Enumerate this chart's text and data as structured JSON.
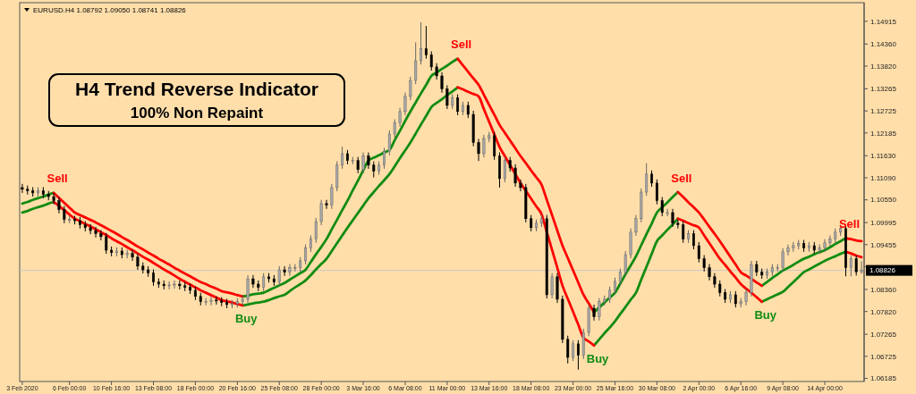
{
  "chart_data": {
    "type": "candlestick",
    "title": "H4 Trend Reverse Indicator",
    "subtitle": "100% Non Repaint",
    "annotations": [
      "EURUSD.H4 1.08792 1.09050 1.08741 1.08826",
      "Sell",
      "Buy",
      "Sell",
      "Buy",
      "Sell",
      "Buy",
      "Sell"
    ],
    "categories": [
      "3 Feb 2020",
      null,
      null,
      null,
      null,
      null,
      null,
      null,
      null,
      "6 Feb 00:00",
      null,
      null,
      null,
      null,
      null,
      null,
      null,
      "10 Feb 16:00",
      null,
      null,
      null,
      null,
      null,
      null,
      null,
      "13 Feb 08:00",
      null,
      null,
      null,
      null,
      null,
      null,
      null,
      "18 Feb 00:00",
      null,
      null,
      null,
      null,
      null,
      null,
      null,
      "20 Feb 16:00",
      null,
      null,
      null,
      null,
      null,
      null,
      null,
      "25 Feb 08:00",
      null,
      null,
      null,
      null,
      null,
      null,
      null,
      "28 Feb 00:00",
      null,
      null,
      null,
      null,
      null,
      null,
      null,
      "3 Mar 16:00",
      null,
      null,
      null,
      null,
      null,
      null,
      null,
      "6 Mar 08:00",
      null,
      null,
      null,
      null,
      null,
      null,
      null,
      "11 Mar 00:00",
      null,
      null,
      null,
      null,
      null,
      null,
      null,
      "13 Mar 16:00",
      null,
      null,
      null,
      null,
      null,
      null,
      null,
      "18 Mar 08:00",
      null,
      null,
      null,
      null,
      null,
      null,
      null,
      "23 Mar 00:00",
      null,
      null,
      null,
      null,
      null,
      null,
      null,
      "25 Mar 16:00",
      null,
      null,
      null,
      null,
      null,
      null,
      null,
      "30 Mar 08:00",
      null,
      null,
      null,
      null,
      null,
      null,
      null,
      "2 Apr 00:00",
      null,
      null,
      null,
      null,
      null,
      null,
      null,
      "6 Apr 16:00",
      null,
      null,
      null,
      null,
      null,
      null,
      null,
      "9 Apr 08:00",
      null,
      null,
      null,
      null,
      null,
      null,
      null,
      "14 Apr 00:00",
      null,
      null,
      null,
      null,
      null,
      null,
      null
    ],
    "ylim": [
      1.0611,
      1.1537
    ],
    "yticks": [
      1.14915,
      {
        "value": 1.1436,
        "label": "1.14360"
      },
      {
        "value": 1.1382,
        "label": "1.13820"
      },
      1.13265,
      1.12725,
      1.12185,
      {
        "value": 1.1163,
        "label": "1.11630"
      },
      {
        "value": 1.1109,
        "label": "1.11090"
      },
      {
        "value": 1.1055,
        "label": "1.10550"
      },
      1.09995,
      1.09455,
      {
        "value": 1.08915,
        "label": null
      },
      {
        "value": 1.0836,
        "label": "1.08360"
      },
      {
        "value": 1.0782,
        "label": "1.07820"
      },
      1.07265,
      1.06725,
      1.06185
    ],
    "ref_lines": [
      {
        "axis": "y",
        "value": 1.08826,
        "label": "1.08826",
        "color": "#c8c8c8"
      }
    ],
    "ohlc": [
      [
        1.1085,
        1.1094,
        1.1072,
        1.1081
      ],
      [
        1.1081,
        1.109,
        1.1068,
        1.1077
      ],
      [
        1.1077,
        1.1086,
        1.1063,
        1.1072
      ],
      [
        1.1072,
        1.1086,
        1.1063,
        1.1077
      ],
      [
        1.1077,
        1.1086,
        1.1059,
        1.1068
      ],
      [
        1.1068,
        1.1077,
        1.1054,
        1.1063
      ],
      [
        1.1063,
        1.1072,
        1.1044,
        1.1053
      ],
      [
        1.1053,
        1.1062,
        1.1022,
        1.1031
      ],
      [
        1.1031,
        1.104,
        1.0998,
        1.1007
      ],
      [
        1.1007,
        1.1016,
        1.0998,
        1.1007
      ],
      [
        1.1007,
        1.1016,
        1.0995,
        1.1004
      ],
      [
        1.1004,
        1.1013,
        1.0985,
        1.0994
      ],
      [
        1.0994,
        1.1003,
        1.0978,
        1.0987
      ],
      [
        1.0987,
        1.0996,
        1.0971,
        1.098
      ],
      [
        1.098,
        1.0989,
        1.0963,
        1.0972
      ],
      [
        1.0972,
        1.0981,
        1.0956,
        1.0965
      ],
      [
        1.0965,
        1.0974,
        1.0923,
        1.0932
      ],
      [
        1.0932,
        1.0941,
        1.0917,
        1.0926
      ],
      [
        1.0926,
        1.0939,
        1.0917,
        1.093
      ],
      [
        1.093,
        1.0939,
        1.0912,
        1.0921
      ],
      [
        1.0921,
        1.0933,
        1.0912,
        1.0924
      ],
      [
        1.0924,
        1.0933,
        1.0906,
        1.0915
      ],
      [
        1.0915,
        1.0924,
        1.0884,
        1.0893
      ],
      [
        1.0893,
        1.0902,
        1.0875,
        1.0884
      ],
      [
        1.0884,
        1.0893,
        1.0867,
        1.0876
      ],
      [
        1.0876,
        1.0885,
        1.0845,
        1.0854
      ],
      [
        1.0854,
        1.0863,
        1.084,
        1.0849
      ],
      [
        1.0849,
        1.0858,
        1.0836,
        1.0845
      ],
      [
        1.0845,
        1.0856,
        1.0836,
        1.0847
      ],
      [
        1.0847,
        1.0858,
        1.0838,
        1.0849
      ],
      [
        1.0849,
        1.0858,
        1.0836,
        1.0845
      ],
      [
        1.0845,
        1.0854,
        1.0832,
        1.0841
      ],
      [
        1.0841,
        1.085,
        1.0825,
        1.0834
      ],
      [
        1.0834,
        1.0843,
        1.081,
        1.0819
      ],
      [
        1.0819,
        1.0828,
        1.0797,
        1.0806
      ],
      [
        1.0806,
        1.0815,
        1.0797,
        1.0806
      ],
      [
        1.0806,
        1.0819,
        1.0797,
        1.081
      ],
      [
        1.081,
        1.0819,
        1.0799,
        1.0808
      ],
      [
        1.0808,
        1.0817,
        1.0795,
        1.0804
      ],
      [
        1.0804,
        1.0813,
        1.079,
        1.0799
      ],
      [
        1.0799,
        1.081,
        1.079,
        1.0801
      ],
      [
        1.0801,
        1.0815,
        1.0792,
        1.0806
      ],
      [
        1.0806,
        1.0821,
        1.0797,
        1.0812
      ],
      [
        1.0812,
        1.0871,
        1.0803,
        1.0862
      ],
      [
        1.0862,
        1.0871,
        1.084,
        1.0849
      ],
      [
        1.0849,
        1.0858,
        1.0832,
        1.0841
      ],
      [
        1.0841,
        1.0876,
        1.0832,
        1.0867
      ],
      [
        1.0867,
        1.0876,
        1.0853,
        1.0862
      ],
      [
        1.0862,
        1.0871,
        1.0845,
        1.0854
      ],
      [
        1.0854,
        1.0893,
        1.0845,
        1.0884
      ],
      [
        1.0884,
        1.0893,
        1.0869,
        1.0878
      ],
      [
        1.0878,
        1.0898,
        1.0869,
        1.0889
      ],
      [
        1.0889,
        1.0898,
        1.088,
        1.0889
      ],
      [
        1.0889,
        1.0915,
        1.088,
        1.0906
      ],
      [
        1.0906,
        1.0946,
        1.0897,
        1.0937
      ],
      [
        1.0937,
        1.0968,
        1.0928,
        1.0959
      ],
      [
        1.0959,
        1.1011,
        1.095,
        1.1002
      ],
      [
        1.1002,
        1.1055,
        1.0993,
        1.1046
      ],
      [
        1.1046,
        1.1055,
        1.1033,
        1.1042
      ],
      [
        1.1042,
        1.1094,
        1.1033,
        1.1085
      ],
      [
        1.1085,
        1.1149,
        1.1076,
        1.114
      ],
      [
        1.114,
        1.1185,
        1.1131,
        1.1168
      ],
      [
        1.1168,
        1.1177,
        1.1142,
        1.1151
      ],
      [
        1.1151,
        1.116,
        1.1142,
        1.1151
      ],
      [
        1.1151,
        1.116,
        1.112,
        1.1129
      ],
      [
        1.1129,
        1.1171,
        1.112,
        1.1162
      ],
      [
        1.1162,
        1.1171,
        1.1131,
        1.114
      ],
      [
        1.114,
        1.1149,
        1.111,
        1.1125
      ],
      [
        1.1125,
        1.1149,
        1.1116,
        1.114
      ],
      [
        1.114,
        1.1182,
        1.1131,
        1.1173
      ],
      [
        1.1173,
        1.1225,
        1.1164,
        1.1216
      ],
      [
        1.1216,
        1.1252,
        1.1207,
        1.1243
      ],
      [
        1.1243,
        1.128,
        1.1234,
        1.1271
      ],
      [
        1.1271,
        1.1317,
        1.1262,
        1.1308
      ],
      [
        1.1308,
        1.1356,
        1.1299,
        1.1347
      ],
      [
        1.1347,
        1.144,
        1.1338,
        1.1395
      ],
      [
        1.1395,
        1.1489,
        1.1386,
        1.1424
      ],
      [
        1.1424,
        1.148,
        1.14,
        1.1409
      ],
      [
        1.1409,
        1.1418,
        1.1371,
        1.138
      ],
      [
        1.138,
        1.1389,
        1.1349,
        1.1358
      ],
      [
        1.1358,
        1.1367,
        1.1317,
        1.1326
      ],
      [
        1.1326,
        1.1335,
        1.1277,
        1.1286
      ],
      [
        1.1286,
        1.1313,
        1.1277,
        1.1304
      ],
      [
        1.1304,
        1.1313,
        1.1262,
        1.1271
      ],
      [
        1.1271,
        1.1295,
        1.1262,
        1.1286
      ],
      [
        1.1286,
        1.1295,
        1.1255,
        1.1264
      ],
      [
        1.1264,
        1.1273,
        1.1186,
        1.1195
      ],
      [
        1.1195,
        1.1204,
        1.115,
        1.1168
      ],
      [
        1.1168,
        1.1214,
        1.1159,
        1.1205
      ],
      [
        1.1205,
        1.1221,
        1.1196,
        1.1212
      ],
      [
        1.1212,
        1.1221,
        1.1153,
        1.1162
      ],
      [
        1.1162,
        1.1171,
        1.1085,
        1.1107
      ],
      [
        1.1107,
        1.116,
        1.1098,
        1.1151
      ],
      [
        1.1151,
        1.116,
        1.1124,
        1.1133
      ],
      [
        1.1133,
        1.1142,
        1.1087,
        1.1096
      ],
      [
        1.1096,
        1.1105,
        1.1076,
        1.1085
      ],
      [
        1.1085,
        1.1094,
        1.1,
        1.1009
      ],
      [
        1.1009,
        1.1018,
        1.0978,
        1.0987
      ],
      [
        1.0987,
        1.1007,
        1.0978,
        1.0998
      ],
      [
        1.0998,
        1.1018,
        1.0989,
        1.1009
      ],
      [
        1.1009,
        1.1018,
        1.0814,
        1.0823
      ],
      [
        1.0823,
        1.0876,
        1.0814,
        1.0867
      ],
      [
        1.0867,
        1.0876,
        1.0803,
        1.0812
      ],
      [
        1.0812,
        1.0821,
        1.0705,
        1.0714
      ],
      [
        1.0714,
        1.0723,
        1.0655,
        1.067
      ],
      [
        1.067,
        1.0712,
        1.0661,
        1.0703
      ],
      [
        1.0703,
        1.0712,
        1.064,
        1.0675
      ],
      [
        1.0675,
        1.074,
        1.0666,
        1.0731
      ],
      [
        1.0731,
        1.0799,
        1.0722,
        1.079
      ],
      [
        1.079,
        1.0799,
        1.076,
        1.0769
      ],
      [
        1.0769,
        1.0815,
        1.076,
        1.0806
      ],
      [
        1.0806,
        1.0821,
        1.0797,
        1.0812
      ],
      [
        1.0812,
        1.0843,
        1.0803,
        1.0834
      ],
      [
        1.0834,
        1.0865,
        1.0825,
        1.0856
      ],
      [
        1.0856,
        1.0887,
        1.0847,
        1.0878
      ],
      [
        1.0878,
        1.093,
        1.0869,
        1.0921
      ],
      [
        1.0921,
        1.0985,
        1.0912,
        1.0976
      ],
      [
        1.0976,
        1.1018,
        1.0967,
        1.1009
      ],
      [
        1.1009,
        1.1083,
        1.1,
        1.1074
      ],
      [
        1.1074,
        1.1145,
        1.1065,
        1.1118
      ],
      [
        1.1118,
        1.1127,
        1.1087,
        1.1096
      ],
      [
        1.1096,
        1.1105,
        1.1044,
        1.1053
      ],
      [
        1.1053,
        1.1062,
        1.1015,
        1.1024
      ],
      [
        1.1024,
        1.1033,
        1.1015,
        1.1024
      ],
      [
        1.1024,
        1.1033,
        1.0989,
        1.0998
      ],
      [
        1.0998,
        1.1007,
        1.0985,
        1.0994
      ],
      [
        1.0994,
        1.1003,
        1.095,
        1.0959
      ],
      [
        1.0959,
        1.0981,
        1.095,
        1.0972
      ],
      [
        1.0972,
        1.0981,
        1.0934,
        1.0943
      ],
      [
        1.0943,
        1.0952,
        1.0902,
        1.0911
      ],
      [
        1.0911,
        1.092,
        1.088,
        1.0889
      ],
      [
        1.0889,
        1.0898,
        1.0858,
        1.0867
      ],
      [
        1.0867,
        1.0876,
        1.084,
        1.0849
      ],
      [
        1.0849,
        1.0858,
        1.0819,
        1.0828
      ],
      [
        1.0828,
        1.0837,
        1.0803,
        1.0812
      ],
      [
        1.0812,
        1.0832,
        1.0803,
        1.0823
      ],
      [
        1.0823,
        1.0832,
        1.0792,
        1.0801
      ],
      [
        1.0801,
        1.0815,
        1.0792,
        1.0806
      ],
      [
        1.0806,
        1.0837,
        1.0797,
        1.0828
      ],
      [
        1.0828,
        1.0906,
        1.0819,
        1.0897
      ],
      [
        1.0897,
        1.0906,
        1.0869,
        1.0878
      ],
      [
        1.0878,
        1.0887,
        1.0862,
        1.0871
      ],
      [
        1.0871,
        1.0887,
        1.0862,
        1.0878
      ],
      [
        1.0878,
        1.0898,
        1.0869,
        1.0889
      ],
      [
        1.0889,
        1.0898,
        1.088,
        1.0889
      ],
      [
        1.0889,
        1.0937,
        1.088,
        1.0928
      ],
      [
        1.0928,
        1.0946,
        1.0919,
        1.0937
      ],
      [
        1.0937,
        1.0952,
        1.0928,
        1.0943
      ],
      [
        1.0943,
        1.0957,
        1.0934,
        1.0948
      ],
      [
        1.0948,
        1.0957,
        1.0928,
        1.0937
      ],
      [
        1.0937,
        1.0952,
        1.0928,
        1.0943
      ],
      [
        1.0943,
        1.0952,
        1.0923,
        1.0932
      ],
      [
        1.0932,
        1.0946,
        1.0923,
        1.0937
      ],
      [
        1.0937,
        1.0959,
        1.0928,
        1.095
      ],
      [
        1.095,
        1.0968,
        1.0941,
        1.0959
      ],
      [
        1.0959,
        1.0985,
        1.095,
        1.0976
      ],
      [
        1.0976,
        1.0994,
        1.0967,
        1.0985
      ],
      [
        1.0985,
        1.0994,
        1.0868,
        1.0889
      ],
      [
        1.0889,
        1.092,
        1.0868,
        1.0911
      ],
      [
        1.0911,
        1.092,
        1.087,
        1.0879
      ],
      [
        1.08792,
        1.0905,
        1.08741,
        1.08826
      ]
    ],
    "series": [
      {
        "type": "line",
        "color": "#128c12",
        "values": [
          1.1046,
          1.105,
          1.1055,
          1.1059,
          1.1063,
          1.1068,
          1.1072,
          null,
          null,
          null,
          null,
          null,
          null,
          null,
          null,
          null,
          null,
          null,
          null,
          null,
          null,
          null,
          null,
          null,
          null,
          null,
          null,
          null,
          null,
          null,
          null,
          null,
          null,
          null,
          null,
          null,
          null,
          null,
          null,
          null,
          null,
          null,
          1.0819,
          1.0821,
          1.0824,
          1.0826,
          1.0828,
          1.0834,
          1.084,
          1.0846,
          1.0852,
          1.086,
          1.0868,
          1.0876,
          1.0884,
          1.0903,
          1.0922,
          1.094,
          1.0959,
          1.0983,
          1.1006,
          1.103,
          1.1053,
          1.1078,
          1.1102,
          1.1127,
          1.1151,
          1.1158,
          1.1164,
          1.1171,
          1.1177,
          1.1201,
          1.1224,
          1.1248,
          1.1271,
          1.1293,
          1.1315,
          1.1336,
          1.1358,
          1.1366,
          1.1375,
          1.1383,
          1.1392,
          1.14,
          null,
          null,
          null,
          null,
          null,
          null,
          null,
          null,
          null,
          null,
          null,
          null,
          null,
          null,
          null,
          null,
          null,
          null,
          null,
          null,
          null,
          null,
          null,
          null,
          null,
          1.078,
          1.0792,
          1.0804,
          1.0816,
          1.0828,
          1.085,
          1.0873,
          1.0895,
          1.0917,
          1.0944,
          1.0971,
          1.0997,
          1.1024,
          1.1037,
          1.1049,
          1.1062,
          1.1074,
          null,
          null,
          null,
          null,
          null,
          null,
          null,
          null,
          null,
          null,
          null,
          null,
          null,
          null,
          null,
          1.0845,
          1.0854,
          1.0864,
          1.0873,
          1.0882,
          1.0889,
          1.0896,
          1.0904,
          1.0911,
          1.0916,
          1.0922,
          1.0927,
          1.0932,
          1.0939,
          1.0947,
          1.0954,
          1.0961,
          null,
          null,
          null
        ]
      },
      {
        "type": "line",
        "color": "#128c12",
        "values": [
          1.1024,
          1.1028,
          1.1033,
          1.1037,
          1.1041,
          1.1046,
          1.105,
          null,
          null,
          null,
          null,
          null,
          null,
          null,
          null,
          null,
          null,
          null,
          null,
          null,
          null,
          null,
          null,
          null,
          null,
          null,
          null,
          null,
          null,
          null,
          null,
          null,
          null,
          null,
          null,
          null,
          null,
          null,
          null,
          null,
          null,
          null,
          1.0797,
          1.0799,
          1.0802,
          1.0804,
          1.0806,
          1.081,
          1.0815,
          1.0819,
          1.0823,
          1.0832,
          1.0841,
          1.0849,
          1.0858,
          1.0871,
          1.0885,
          1.0898,
          1.0911,
          1.093,
          1.0949,
          1.0968,
          1.0987,
          1.1005,
          1.1023,
          1.1041,
          1.1059,
          1.1074,
          1.1089,
          1.1103,
          1.1118,
          1.1137,
          1.1157,
          1.1176,
          1.1195,
          1.1217,
          1.1239,
          1.126,
          1.1282,
          1.1292,
          1.1301,
          1.1311,
          1.132,
          1.133,
          null,
          null,
          null,
          null,
          null,
          null,
          null,
          null,
          null,
          null,
          null,
          null,
          null,
          null,
          null,
          null,
          null,
          null,
          null,
          null,
          null,
          null,
          null,
          null,
          null,
          1.0699,
          1.0714,
          1.0729,
          1.0743,
          1.0758,
          1.0776,
          1.0793,
          1.0811,
          1.0828,
          1.086,
          1.0891,
          1.0923,
          1.0954,
          1.0968,
          1.0982,
          1.0995,
          1.1009,
          null,
          null,
          null,
          null,
          null,
          null,
          null,
          null,
          null,
          null,
          null,
          null,
          null,
          null,
          null,
          1.0806,
          1.0812,
          1.0818,
          1.0824,
          1.083,
          1.0842,
          1.0854,
          1.0866,
          1.0878,
          1.0885,
          1.0892,
          1.0899,
          1.0906,
          1.0912,
          1.0917,
          1.0923,
          1.0928,
          null,
          null,
          null
        ]
      },
      {
        "type": "line",
        "color": "#ff0000",
        "values": [
          null,
          null,
          null,
          null,
          null,
          null,
          1.1072,
          1.106,
          1.1048,
          1.1036,
          1.1024,
          1.1018,
          1.1012,
          1.1006,
          1.1,
          1.0993,
          1.0986,
          1.0979,
          1.0972,
          1.0964,
          1.0957,
          1.0949,
          1.0941,
          1.0934,
          1.0926,
          1.0919,
          1.0911,
          1.0904,
          1.0897,
          1.0889,
          1.0882,
          1.0875,
          1.0868,
          1.0861,
          1.0854,
          1.0849,
          1.0843,
          1.0838,
          1.0832,
          1.0829,
          1.0826,
          1.0822,
          1.0819,
          null,
          null,
          null,
          null,
          null,
          null,
          null,
          null,
          null,
          null,
          null,
          null,
          null,
          null,
          null,
          null,
          null,
          null,
          null,
          null,
          null,
          null,
          null,
          null,
          null,
          null,
          null,
          null,
          null,
          null,
          null,
          null,
          null,
          null,
          null,
          null,
          null,
          null,
          null,
          null,
          1.14,
          1.1384,
          1.1368,
          1.1352,
          1.1336,
          1.1312,
          1.1287,
          1.1263,
          1.1238,
          1.1219,
          1.12,
          1.1181,
          1.1162,
          1.1145,
          1.1127,
          1.111,
          1.1092,
          1.1055,
          1.1018,
          1.098,
          1.0943,
          1.0913,
          1.0883,
          1.0853,
          1.0823,
          1.0802,
          1.078,
          null,
          null,
          null,
          null,
          null,
          null,
          null,
          null,
          null,
          null,
          null,
          null,
          null,
          null,
          null,
          1.1074,
          1.1062,
          1.1049,
          1.1037,
          1.1024,
          1.1007,
          1.0989,
          1.0972,
          1.0954,
          1.0935,
          1.0916,
          1.0897,
          1.0878,
          1.087,
          1.0862,
          1.0853,
          1.0845,
          null,
          null,
          null,
          null,
          null,
          null,
          null,
          null,
          null,
          null,
          null,
          null,
          null,
          null,
          null,
          1.0961,
          1.0959,
          1.0956,
          1.0954
        ]
      },
      {
        "type": "line",
        "color": "#ff0000",
        "values": [
          null,
          null,
          null,
          null,
          null,
          null,
          1.105,
          1.104,
          1.103,
          1.1019,
          1.1009,
          1.1003,
          1.0996,
          1.099,
          1.0983,
          1.0976,
          1.0969,
          1.0961,
          1.0954,
          1.0947,
          1.0939,
          1.0932,
          1.0924,
          1.0916,
          1.0909,
          1.0901,
          1.0893,
          1.0885,
          1.0878,
          1.087,
          1.0862,
          1.0855,
          1.0848,
          1.0841,
          1.0834,
          1.0828,
          1.0822,
          1.0816,
          1.081,
          1.0807,
          1.0804,
          1.08,
          1.0797,
          null,
          null,
          null,
          null,
          null,
          null,
          null,
          null,
          null,
          null,
          null,
          null,
          null,
          null,
          null,
          null,
          null,
          null,
          null,
          null,
          null,
          null,
          null,
          null,
          null,
          null,
          null,
          null,
          null,
          null,
          null,
          null,
          null,
          null,
          null,
          null,
          null,
          null,
          null,
          null,
          1.133,
          1.1325,
          1.1319,
          1.1314,
          1.1308,
          1.1277,
          1.1246,
          1.1215,
          1.1184,
          1.1162,
          1.114,
          1.1118,
          1.1096,
          1.1077,
          1.1058,
          1.1039,
          1.102,
          1.0976,
          1.0933,
          1.0889,
          1.0845,
          1.0813,
          1.0782,
          1.075,
          1.0718,
          1.0709,
          1.0699,
          null,
          null,
          null,
          null,
          null,
          null,
          null,
          null,
          null,
          null,
          null,
          null,
          null,
          null,
          null,
          1.1009,
          1.1004,
          1.0998,
          1.0993,
          1.0987,
          1.0968,
          1.0949,
          1.093,
          1.0911,
          1.0896,
          1.088,
          1.0865,
          1.0849,
          1.0838,
          1.0828,
          1.0817,
          1.0806,
          null,
          null,
          null,
          null,
          null,
          null,
          null,
          null,
          null,
          null,
          null,
          null,
          null,
          null,
          null,
          1.0928,
          1.0924,
          1.0919,
          1.0915
        ]
      }
    ]
  }
}
